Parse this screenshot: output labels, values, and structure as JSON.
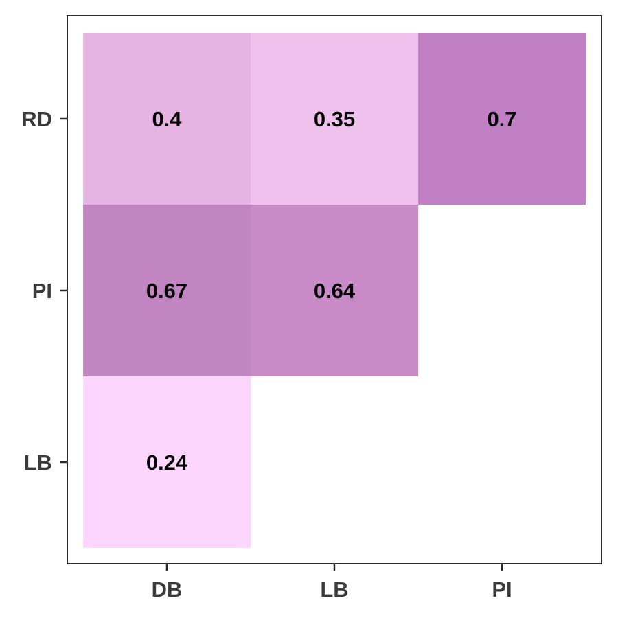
{
  "chart_data": {
    "type": "heatmap",
    "title": "",
    "xlabel": "",
    "ylabel": "",
    "x_categories": [
      "DB",
      "LB",
      "PI"
    ],
    "y_categories": [
      "LB",
      "PI",
      "RD"
    ],
    "grid": false,
    "legend": "none",
    "cells": [
      {
        "x": "DB",
        "y": "RD",
        "value": 0.4,
        "label": "0.4",
        "color": "#e6b4e3"
      },
      {
        "x": "LB",
        "y": "RD",
        "value": 0.35,
        "label": "0.35",
        "color": "#efc2ee"
      },
      {
        "x": "PI",
        "y": "RD",
        "value": 0.7,
        "label": "0.7",
        "color": "#c080c3"
      },
      {
        "x": "DB",
        "y": "PI",
        "value": 0.67,
        "label": "0.67",
        "color": "#c185c2"
      },
      {
        "x": "LB",
        "y": "PI",
        "value": 0.64,
        "label": "0.64",
        "color": "#c98bc8"
      },
      {
        "x": "DB",
        "y": "LB",
        "value": 0.24,
        "label": "0.24",
        "color": "#fcd6fd"
      }
    ]
  }
}
